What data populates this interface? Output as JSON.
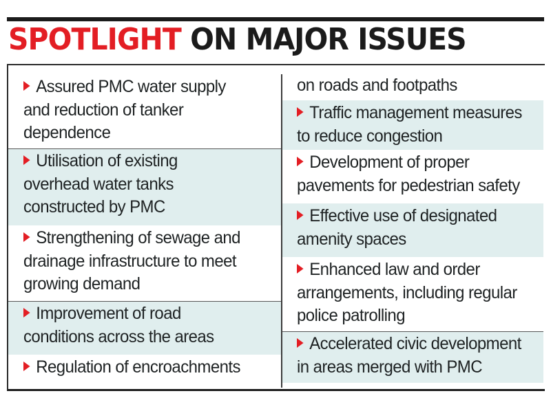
{
  "title": {
    "highlight": "SPOTLIGHT",
    "rest": "ON MAJOR ISSUES"
  },
  "colors": {
    "accent": "#e31e24",
    "shade": "#e0eeee",
    "text": "#1e2223"
  },
  "bullet_icon": "red-chevron-right",
  "left_column": [
    {
      "lines": [
        "Assured PMC water supply",
        "and reduction of tanker",
        "dependence"
      ]
    },
    {
      "lines": [
        "Utilisation of existing",
        "overhead water tanks",
        "constructed by PMC"
      ]
    },
    {
      "lines": [
        "Strengthening of sewage and",
        "drainage infrastructure to meet",
        "growing demand"
      ]
    },
    {
      "lines": [
        "Improvement of road",
        "conditions across the areas"
      ]
    },
    {
      "lines": [
        "Regulation of encroachments"
      ]
    }
  ],
  "right_column": [
    {
      "lines": [
        "on roads and footpaths"
      ]
    },
    {
      "lines": [
        "Traffic management measures",
        "to reduce congestion"
      ]
    },
    {
      "lines": [
        "Development of proper",
        "pavements for pedestrian safety"
      ]
    },
    {
      "lines": [
        "Effective use of designated",
        "amenity spaces"
      ]
    },
    {
      "lines": [
        "Enhanced law and order",
        "arrangements, including regular",
        "police patrolling"
      ]
    },
    {
      "lines": [
        "Accelerated civic development",
        "in areas merged with PMC"
      ]
    }
  ]
}
